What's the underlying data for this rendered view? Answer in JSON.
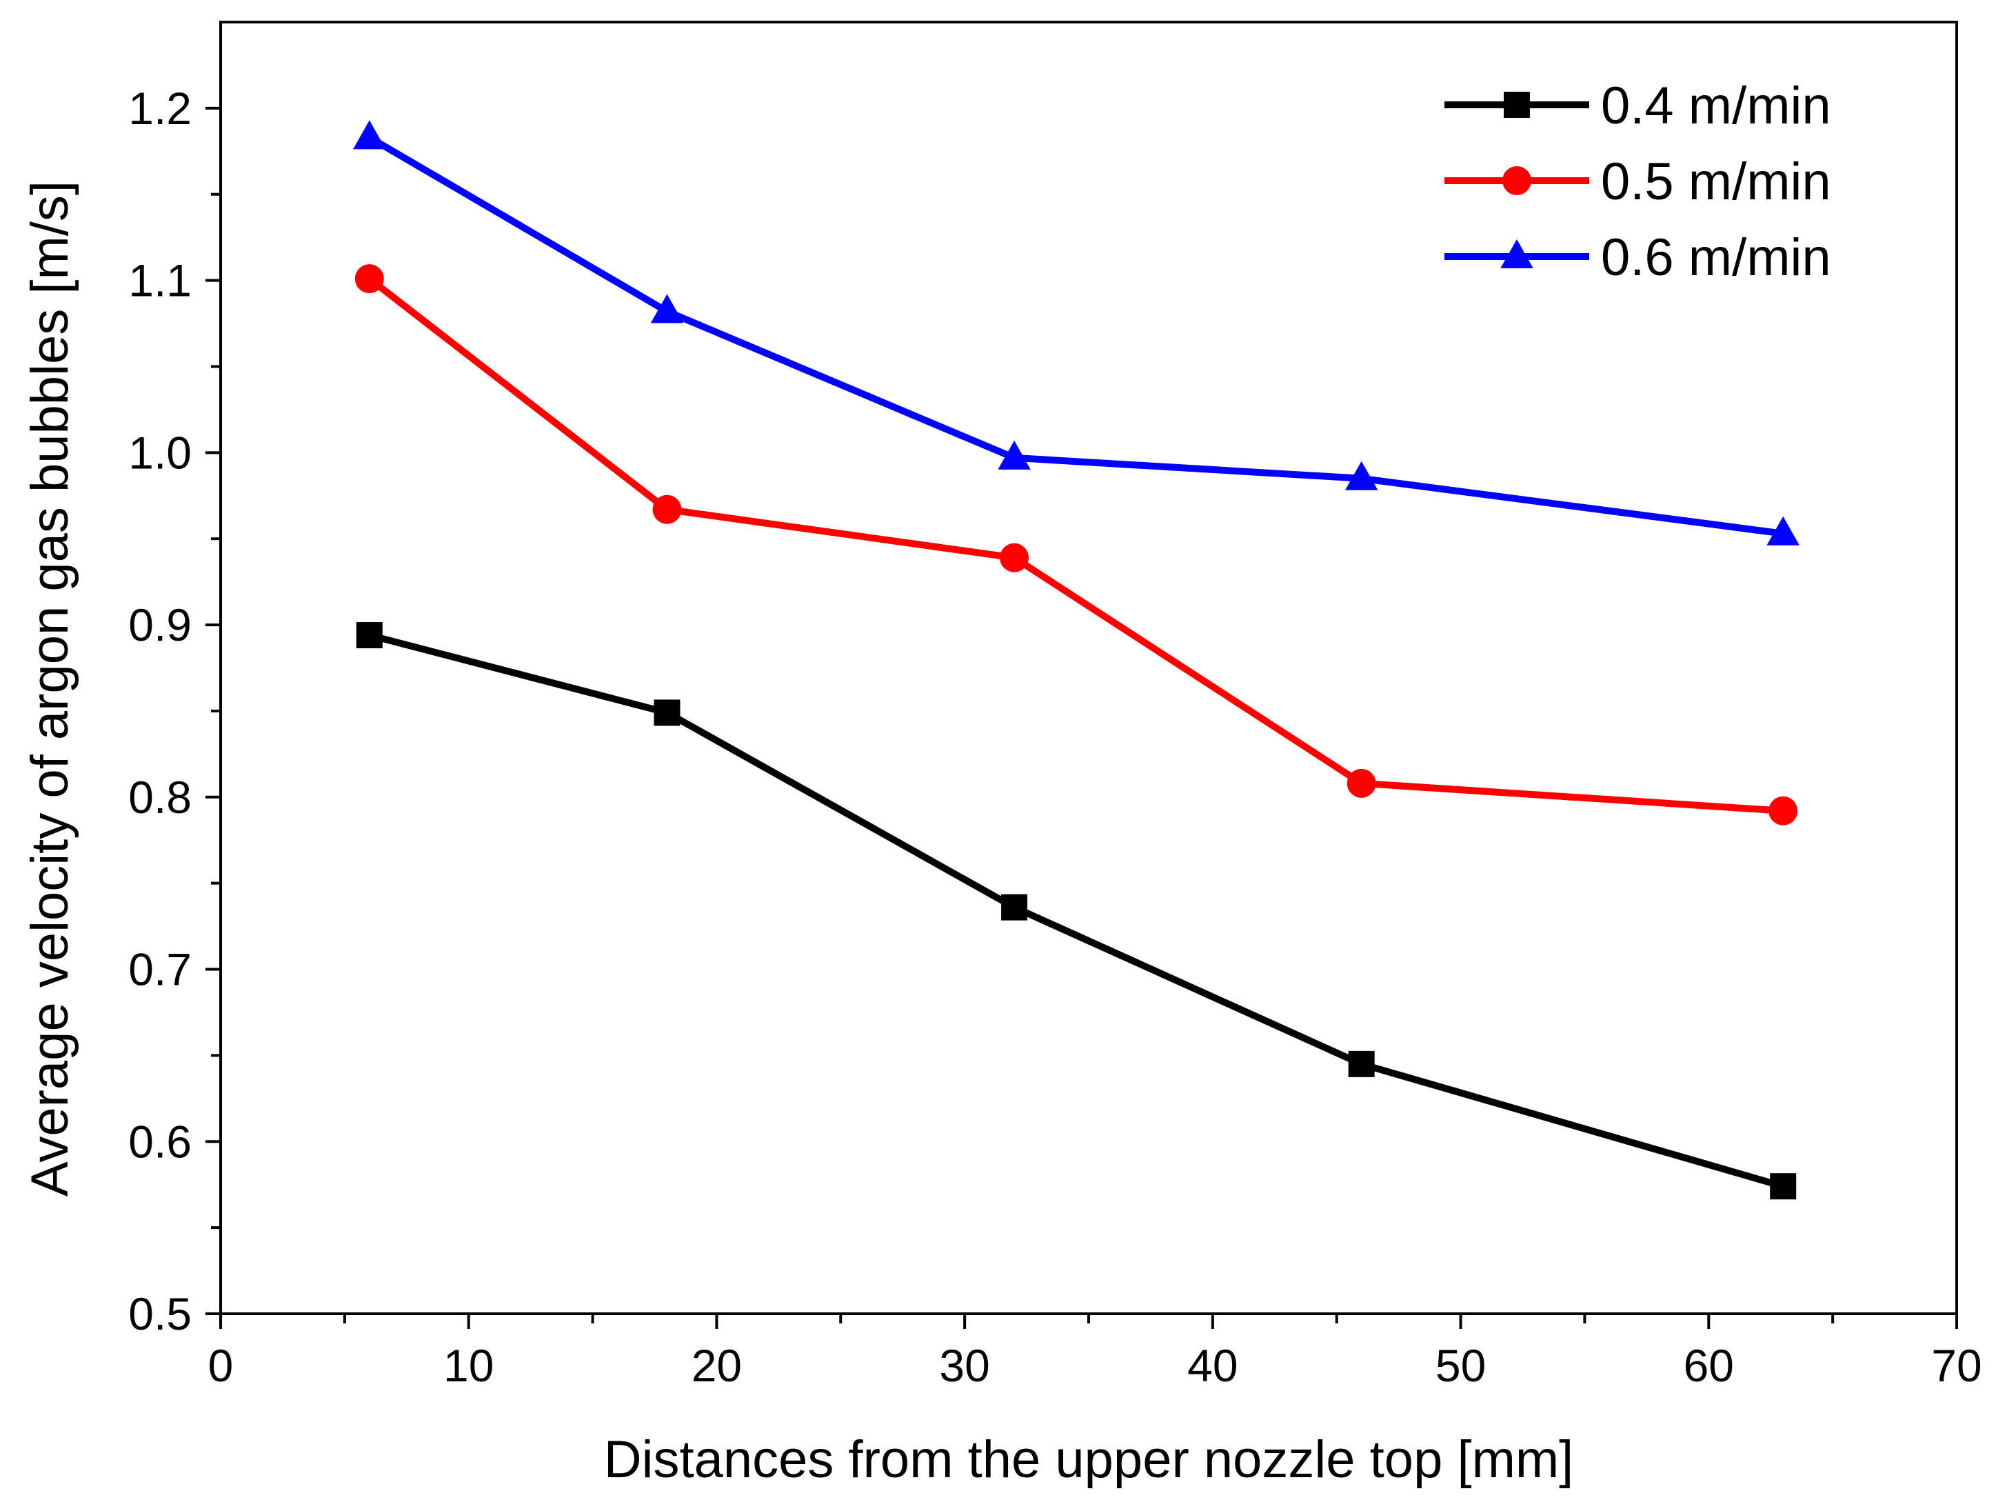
{
  "chart_data": {
    "type": "line",
    "title": "",
    "xlabel": "Distances from the upper nozzle top [mm]",
    "ylabel": "Average velocity of argon gas bubbles [m/s]",
    "xlim": [
      0,
      70
    ],
    "ylim": [
      0.5,
      1.25
    ],
    "x_ticks": [
      0,
      10,
      20,
      30,
      40,
      50,
      60,
      70
    ],
    "x_tick_labels": [
      "0",
      "10",
      "20",
      "30",
      "40",
      "50",
      "60",
      "70"
    ],
    "x_minor_step": 5,
    "y_ticks": [
      0.5,
      0.6,
      0.7,
      0.8,
      0.9,
      1.0,
      1.1,
      1.2
    ],
    "y_tick_labels": [
      "0.5",
      "0.6",
      "0.7",
      "0.8",
      "0.9",
      "1.0",
      "1.1",
      "1.2"
    ],
    "y_minor_step": 0.05,
    "grid": false,
    "legend_position": "top-right",
    "x": [
      6,
      18,
      32,
      46,
      63
    ],
    "series": [
      {
        "name": "0.4 m/min",
        "color": "#000000",
        "marker": "square",
        "values": [
          0.894,
          0.849,
          0.736,
          0.645,
          0.574
        ]
      },
      {
        "name": "0.5 m/min",
        "color": "#ff0000",
        "marker": "circle",
        "values": [
          1.101,
          0.967,
          0.939,
          0.808,
          0.792
        ]
      },
      {
        "name": "0.6 m/min",
        "color": "#0000ff",
        "marker": "triangle",
        "values": [
          1.183,
          1.082,
          0.997,
          0.985,
          0.953
        ]
      }
    ]
  }
}
